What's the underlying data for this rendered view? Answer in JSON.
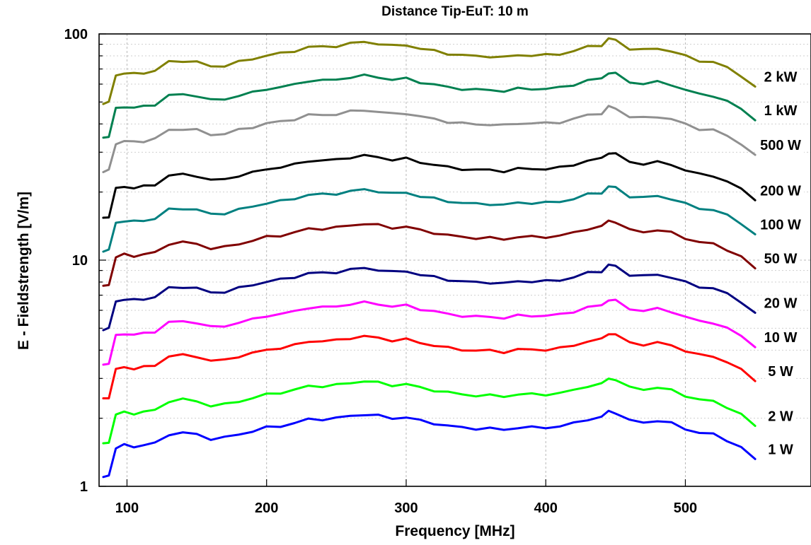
{
  "chart_data": {
    "type": "line",
    "title": "Distance Tip-EuT: 10 m",
    "xlabel": "Frequency [MHz]",
    "ylabel": "E - Fieldstrength [V/m]",
    "xlim": [
      80,
      590
    ],
    "ylim": [
      1,
      100
    ],
    "yscale": "log",
    "grid": true,
    "xticks": [
      100,
      200,
      300,
      400,
      500
    ],
    "xtick_labels": [
      "100",
      "200",
      "300",
      "400",
      "500"
    ],
    "yticks": [
      1,
      10,
      100
    ],
    "ytick_labels": [
      "1",
      "10",
      "100"
    ],
    "x": [
      83,
      87,
      92,
      98,
      105,
      112,
      120,
      130,
      140,
      150,
      160,
      170,
      180,
      190,
      200,
      210,
      220,
      230,
      240,
      250,
      260,
      270,
      280,
      290,
      300,
      310,
      320,
      330,
      340,
      350,
      360,
      370,
      380,
      390,
      400,
      410,
      420,
      430,
      440,
      445,
      450,
      460,
      470,
      480,
      490,
      500,
      510,
      520,
      530,
      540,
      550
    ],
    "series": [
      {
        "name": "1 W",
        "color": "#0000ff",
        "values": [
          1.1,
          1.12,
          1.48,
          1.52,
          1.5,
          1.52,
          1.55,
          1.7,
          1.72,
          1.7,
          1.62,
          1.64,
          1.7,
          1.75,
          1.82,
          1.85,
          1.9,
          1.98,
          1.98,
          2.0,
          2.05,
          2.08,
          2.05,
          2.0,
          2.02,
          1.95,
          1.9,
          1.85,
          1.82,
          1.8,
          1.8,
          1.78,
          1.82,
          1.82,
          1.82,
          1.84,
          1.9,
          1.98,
          2.02,
          2.15,
          2.12,
          1.95,
          1.92,
          1.95,
          1.9,
          1.8,
          1.72,
          1.7,
          1.6,
          1.48,
          1.32
        ]
      },
      {
        "name": "2 W",
        "color": "#00ff00",
        "values": [
          1.55,
          1.57,
          2.08,
          2.12,
          2.1,
          2.13,
          2.17,
          2.38,
          2.42,
          2.38,
          2.27,
          2.3,
          2.38,
          2.45,
          2.55,
          2.6,
          2.66,
          2.78,
          2.77,
          2.8,
          2.87,
          2.92,
          2.87,
          2.8,
          2.83,
          2.73,
          2.66,
          2.6,
          2.55,
          2.52,
          2.52,
          2.5,
          2.55,
          2.55,
          2.55,
          2.58,
          2.66,
          2.78,
          2.83,
          3.0,
          2.97,
          2.73,
          2.69,
          2.73,
          2.66,
          2.52,
          2.41,
          2.38,
          2.24,
          2.07,
          1.85
        ]
      },
      {
        "name": "5 W",
        "color": "#ff0000",
        "values": [
          2.45,
          2.48,
          3.28,
          3.36,
          3.32,
          3.36,
          3.43,
          3.76,
          3.8,
          3.76,
          3.58,
          3.62,
          3.76,
          3.87,
          4.02,
          4.09,
          4.2,
          4.38,
          4.38,
          4.42,
          4.53,
          4.6,
          4.53,
          4.42,
          4.46,
          4.31,
          4.2,
          4.09,
          4.02,
          3.98,
          3.98,
          3.93,
          4.02,
          4.02,
          4.02,
          4.07,
          4.2,
          4.38,
          4.46,
          4.75,
          4.69,
          4.31,
          4.24,
          4.31,
          4.2,
          3.98,
          3.8,
          3.76,
          3.54,
          3.27,
          2.92
        ]
      },
      {
        "name": "10 W",
        "color": "#ff00ff",
        "values": [
          3.45,
          3.5,
          4.62,
          4.74,
          4.68,
          4.74,
          4.84,
          5.3,
          5.36,
          5.3,
          5.05,
          5.11,
          5.3,
          5.46,
          5.68,
          5.77,
          5.93,
          6.18,
          6.18,
          6.24,
          6.4,
          6.49,
          6.4,
          6.24,
          6.3,
          6.08,
          5.93,
          5.77,
          5.68,
          5.62,
          5.62,
          5.55,
          5.68,
          5.68,
          5.68,
          5.74,
          5.93,
          6.18,
          6.3,
          6.7,
          6.61,
          6.08,
          5.99,
          6.08,
          5.93,
          5.62,
          5.36,
          5.3,
          4.99,
          4.62,
          4.12
        ]
      },
      {
        "name": "20 W",
        "color": "#000080",
        "values": [
          4.9,
          4.97,
          6.57,
          6.73,
          6.65,
          6.73,
          6.87,
          7.52,
          7.62,
          7.52,
          7.17,
          7.26,
          7.52,
          7.75,
          8.06,
          8.19,
          8.41,
          8.77,
          8.76,
          8.85,
          9.08,
          9.21,
          9.08,
          8.85,
          8.94,
          8.63,
          8.41,
          8.19,
          8.06,
          7.97,
          7.97,
          7.88,
          8.06,
          8.06,
          8.06,
          8.15,
          8.41,
          8.77,
          8.94,
          9.52,
          9.39,
          8.63,
          8.5,
          8.63,
          8.41,
          7.97,
          7.62,
          7.52,
          7.08,
          6.55,
          5.85
        ]
      },
      {
        "name": "50 W",
        "color": "#800000",
        "values": [
          7.7,
          7.81,
          10.32,
          10.58,
          10.45,
          10.58,
          10.8,
          11.82,
          11.97,
          11.82,
          11.27,
          11.4,
          11.82,
          12.18,
          12.67,
          12.87,
          13.22,
          13.78,
          13.77,
          13.91,
          14.27,
          14.48,
          14.27,
          13.91,
          14.05,
          13.56,
          13.22,
          12.87,
          12.67,
          12.53,
          12.53,
          12.38,
          12.67,
          12.67,
          12.67,
          12.81,
          13.22,
          13.78,
          14.05,
          14.96,
          14.76,
          13.56,
          13.36,
          13.56,
          13.22,
          12.53,
          11.97,
          11.82,
          11.13,
          10.3,
          9.2
        ]
      },
      {
        "name": "100 W",
        "color": "#008080",
        "values": [
          10.9,
          11.06,
          14.6,
          14.96,
          14.79,
          14.96,
          15.28,
          16.72,
          16.93,
          16.72,
          15.94,
          16.13,
          16.72,
          17.23,
          17.92,
          18.2,
          18.7,
          19.49,
          19.48,
          19.67,
          20.18,
          20.48,
          20.18,
          19.67,
          19.87,
          19.18,
          18.7,
          18.2,
          17.92,
          17.72,
          17.72,
          17.52,
          17.92,
          17.92,
          17.92,
          18.12,
          18.7,
          19.49,
          19.87,
          21.16,
          20.88,
          19.18,
          18.9,
          19.18,
          18.7,
          17.72,
          16.93,
          16.72,
          15.74,
          14.57,
          13.0
        ]
      },
      {
        "name": "200 W",
        "color": "#000000",
        "values": [
          15.4,
          15.62,
          20.63,
          21.14,
          20.89,
          21.14,
          21.59,
          23.62,
          23.92,
          23.62,
          22.52,
          22.79,
          23.62,
          24.34,
          25.32,
          25.72,
          26.42,
          27.54,
          27.52,
          27.8,
          28.51,
          28.94,
          28.51,
          27.8,
          28.08,
          27.1,
          26.42,
          25.72,
          25.32,
          25.04,
          25.04,
          24.75,
          25.32,
          25.32,
          25.32,
          25.6,
          26.42,
          27.54,
          28.08,
          29.9,
          29.5,
          27.1,
          26.7,
          27.1,
          26.42,
          25.04,
          23.92,
          23.62,
          22.24,
          20.58,
          18.4
        ]
      },
      {
        "name": "500 W",
        "color": "#909090",
        "values": [
          24.5,
          24.85,
          32.81,
          33.62,
          33.23,
          33.62,
          34.34,
          37.58,
          38.05,
          37.58,
          35.82,
          36.25,
          37.58,
          38.72,
          40.27,
          40.91,
          42.03,
          43.8,
          43.78,
          44.22,
          45.35,
          46.03,
          45.35,
          44.22,
          44.66,
          43.11,
          42.03,
          40.91,
          40.27,
          39.83,
          39.83,
          39.37,
          40.27,
          40.27,
          40.27,
          40.72,
          42.03,
          43.8,
          44.66,
          47.56,
          46.93,
          43.11,
          42.47,
          43.11,
          42.03,
          39.83,
          38.05,
          37.58,
          35.38,
          32.74,
          29.2
        ]
      },
      {
        "name": "1 kW",
        "color": "#008050",
        "values": [
          34.8,
          35.29,
          46.6,
          47.76,
          47.2,
          47.76,
          48.78,
          53.38,
          54.05,
          53.38,
          50.88,
          51.49,
          53.38,
          55.0,
          57.2,
          58.11,
          59.7,
          62.22,
          62.19,
          62.81,
          64.41,
          65.38,
          64.41,
          62.81,
          63.44,
          61.23,
          59.7,
          58.11,
          57.2,
          56.58,
          56.58,
          55.92,
          57.2,
          57.2,
          57.2,
          57.84,
          59.7,
          62.22,
          63.44,
          67.56,
          66.66,
          61.23,
          60.33,
          61.23,
          59.7,
          56.58,
          54.05,
          53.38,
          50.25,
          46.51,
          41.5
        ]
      },
      {
        "name": "2 kW",
        "color": "#808000",
        "values": [
          49.0,
          49.7,
          65.63,
          67.26,
          66.48,
          67.26,
          68.7,
          75.17,
          76.12,
          75.17,
          71.66,
          72.51,
          75.17,
          77.46,
          80.56,
          81.84,
          84.08,
          87.62,
          87.58,
          88.46,
          90.71,
          92.08,
          90.71,
          88.46,
          89.34,
          86.23,
          84.08,
          81.84,
          80.56,
          79.68,
          79.68,
          78.75,
          80.56,
          80.56,
          80.56,
          81.46,
          84.08,
          87.62,
          89.34,
          95.14,
          93.88,
          86.23,
          84.97,
          86.23,
          84.08,
          79.68,
          76.12,
          75.17,
          70.77,
          65.5,
          58.5
        ]
      }
    ]
  }
}
